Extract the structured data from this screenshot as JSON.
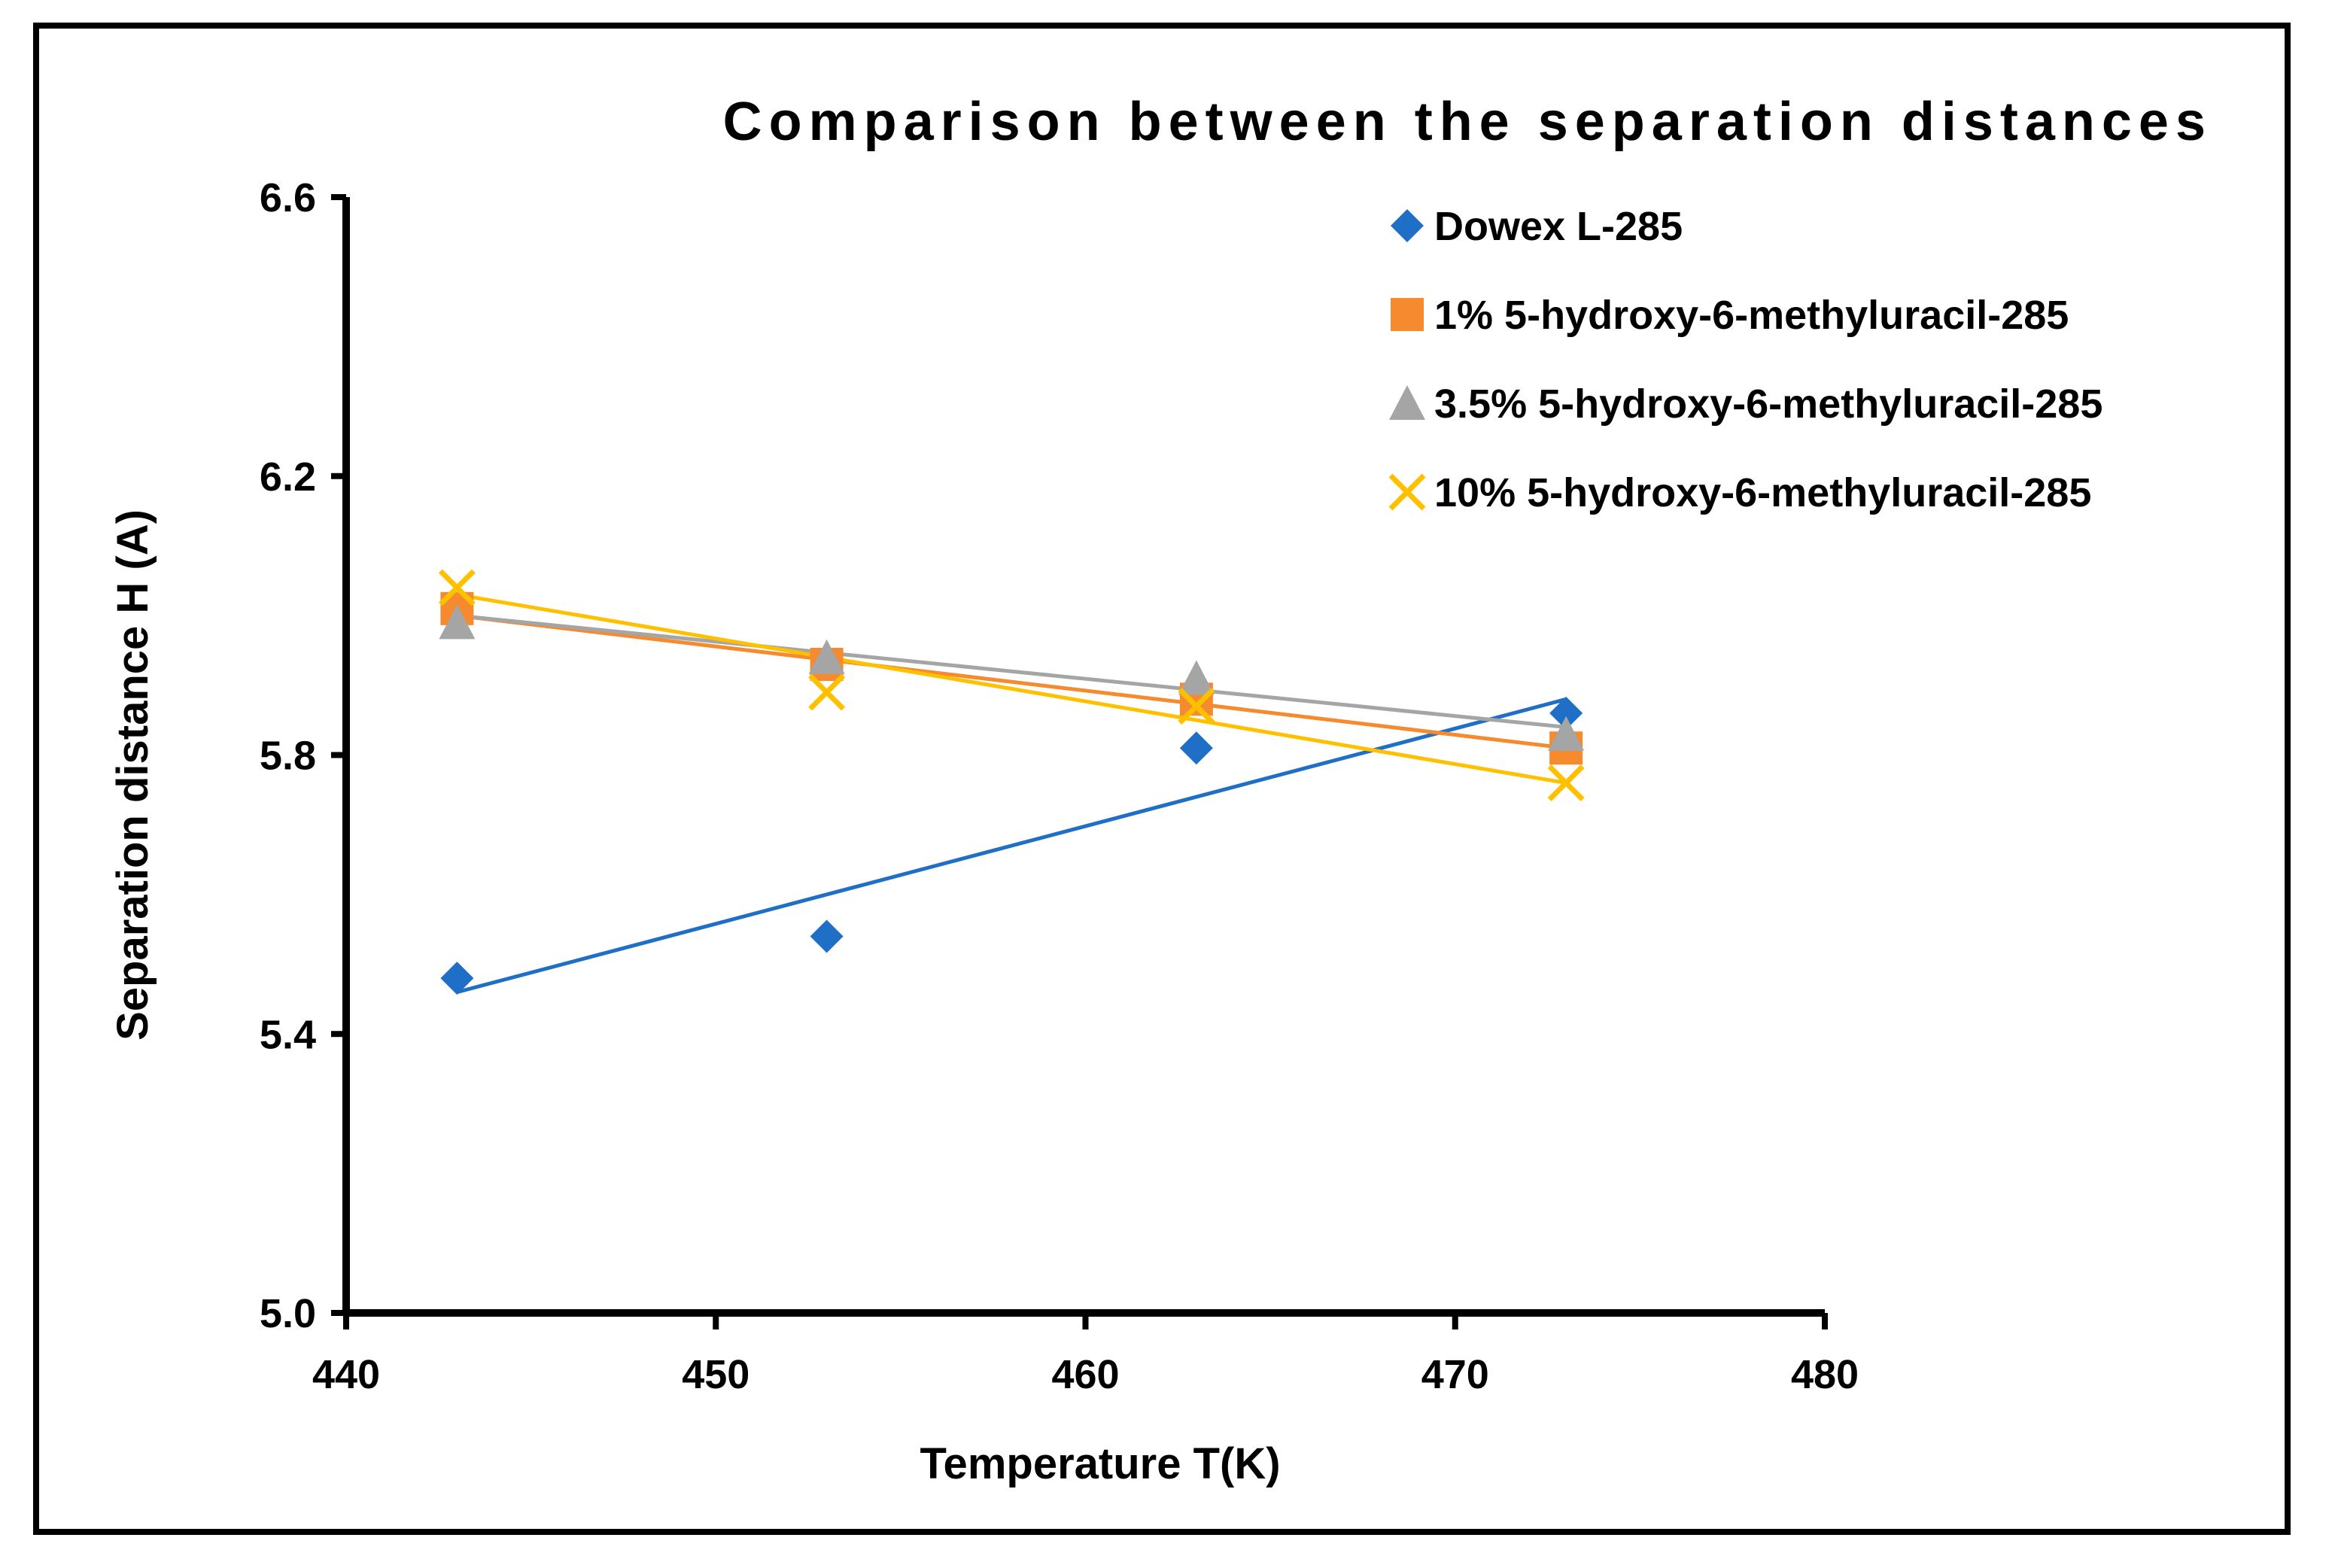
{
  "chart_data": {
    "type": "scatter",
    "title": "Comparison between the separation distances",
    "xlabel": "Temperature T(K)",
    "ylabel": "Separation distance H (A)",
    "xlim": [
      440,
      480
    ],
    "ylim": [
      5.0,
      6.6
    ],
    "xticks": [
      "440",
      "450",
      "460",
      "470",
      "480"
    ],
    "yticks": [
      "5.0",
      "5.4",
      "5.8",
      "6.2",
      "6.6"
    ],
    "xtick_values": [
      440,
      450,
      460,
      470,
      480
    ],
    "ytick_values": [
      5.0,
      5.4,
      5.8,
      6.2,
      6.6
    ],
    "grid": false,
    "legend_position": "top-right",
    "series": [
      {
        "name": "Dowex L-285",
        "marker": "diamond",
        "color": "#1F6FC6",
        "x": [
          443,
          453,
          463,
          473
        ],
        "y": [
          5.48,
          5.54,
          5.81,
          5.86
        ],
        "trendline": [
          [
            443,
            5.46
          ],
          [
            473,
            5.88
          ]
        ]
      },
      {
        "name": "1% 5-hydroxy-6-methyluracil-285",
        "marker": "square",
        "color": "#F58A2E",
        "x": [
          443,
          453,
          463,
          473
        ],
        "y": [
          6.01,
          5.93,
          5.88,
          5.81
        ],
        "trendline": [
          [
            443,
            6.0
          ],
          [
            473,
            5.81
          ]
        ]
      },
      {
        "name": "3.5% 5-hydroxy-6-methyluracil-285",
        "marker": "triangle",
        "color": "#A5A5A5",
        "x": [
          443,
          453,
          463,
          473
        ],
        "y": [
          5.99,
          5.94,
          5.91,
          5.83
        ],
        "trendline": [
          [
            443,
            6.0
          ],
          [
            473,
            5.84
          ]
        ]
      },
      {
        "name": "10% 5-hydroxy-6-methyluracil-285",
        "marker": "x",
        "color": "#FFC000",
        "x": [
          443,
          453,
          463,
          473
        ],
        "y": [
          6.04,
          5.89,
          5.87,
          5.76
        ],
        "trendline": [
          [
            443,
            6.03
          ],
          [
            473,
            5.76
          ]
        ]
      }
    ]
  }
}
